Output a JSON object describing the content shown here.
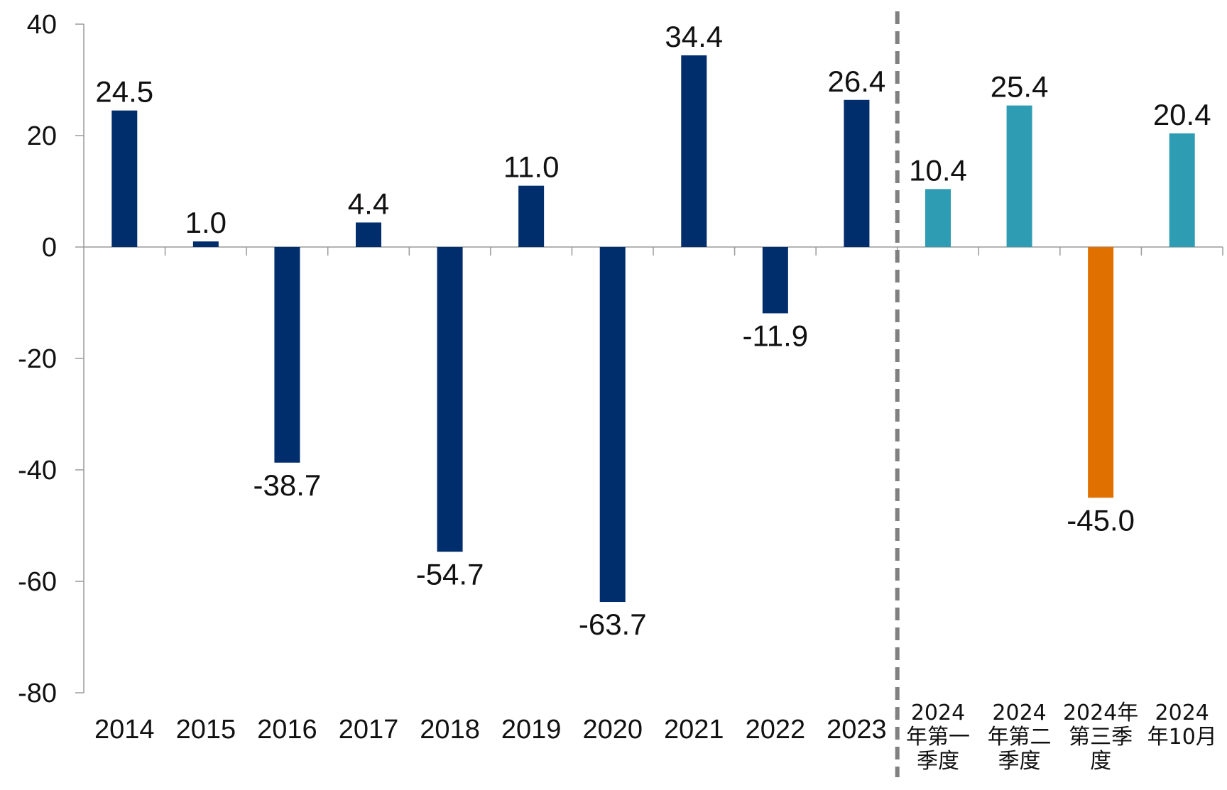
{
  "chart_data": {
    "type": "bar",
    "categories": [
      "2014",
      "2015",
      "2016",
      "2017",
      "2018",
      "2019",
      "2020",
      "2021",
      "2022",
      "2023",
      "2024\n年第一\n季度",
      "2024\n年第二\n季度",
      "2024年\n第三季\n度",
      "2024\n年10月"
    ],
    "values": [
      24.5,
      1.0,
      -38.7,
      4.4,
      -54.7,
      11.0,
      -63.7,
      34.4,
      -11.9,
      26.4,
      10.4,
      25.4,
      -45.0,
      20.4
    ],
    "data_labels": [
      "24.5",
      "1.0",
      "-38.7",
      "4.4",
      "-54.7",
      "11.0",
      "-63.7",
      "34.4",
      "-11.9",
      "26.4",
      "10.4",
      "25.4",
      "-45.0",
      "20.4"
    ],
    "bar_colors": [
      "#002d6b",
      "#002d6b",
      "#002d6b",
      "#002d6b",
      "#002d6b",
      "#002d6b",
      "#002d6b",
      "#002d6b",
      "#002d6b",
      "#002d6b",
      "#2e9db4",
      "#2e9db4",
      "#e07000",
      "#2e9db4"
    ],
    "title": "",
    "xlabel": "",
    "ylabel": "",
    "ylim": [
      -80,
      40
    ],
    "yticks": [
      40,
      20,
      0,
      -20,
      -40,
      -60,
      -80
    ],
    "grid": false,
    "legend": "none",
    "divider": {
      "after_category_index": 9,
      "style": "dashed",
      "color": "#808080"
    }
  }
}
